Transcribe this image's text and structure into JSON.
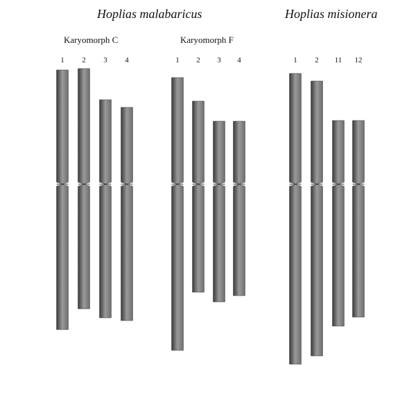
{
  "species": [
    {
      "name": "Hoplias malabaricus",
      "karyomorphs": [
        {
          "name": "Karyomorph C",
          "chromosomes": [
            {
              "label": "1",
              "p_arm": 165,
              "q_arm": 210
            },
            {
              "label": "2",
              "p_arm": 167,
              "q_arm": 180
            },
            {
              "label": "3",
              "p_arm": 122,
              "q_arm": 193
            },
            {
              "label": "4",
              "p_arm": 111,
              "q_arm": 197
            }
          ]
        },
        {
          "name": "Karyomorph F",
          "chromosomes": [
            {
              "label": "1",
              "p_arm": 154,
              "q_arm": 240
            },
            {
              "label": "2",
              "p_arm": 120,
              "q_arm": 156
            },
            {
              "label": "3",
              "p_arm": 91,
              "q_arm": 170
            },
            {
              "label": "4",
              "p_arm": 91,
              "q_arm": 161
            }
          ]
        }
      ]
    },
    {
      "name": "Hoplias misionera",
      "karyomorphs": [
        {
          "name": "",
          "chromosomes": [
            {
              "label": "1",
              "p_arm": 160,
              "q_arm": 260
            },
            {
              "label": "2",
              "p_arm": 149,
              "q_arm": 248
            },
            {
              "label": "11",
              "p_arm": 92,
              "q_arm": 205
            },
            {
              "label": "12",
              "p_arm": 92,
              "q_arm": 192
            }
          ]
        }
      ]
    }
  ],
  "colors": {
    "chromosome_dark": "#3a3a3a",
    "chromosome_mid": "#6e6e6e",
    "chromosome_light": "#9a9a9a",
    "text": "#111111"
  }
}
